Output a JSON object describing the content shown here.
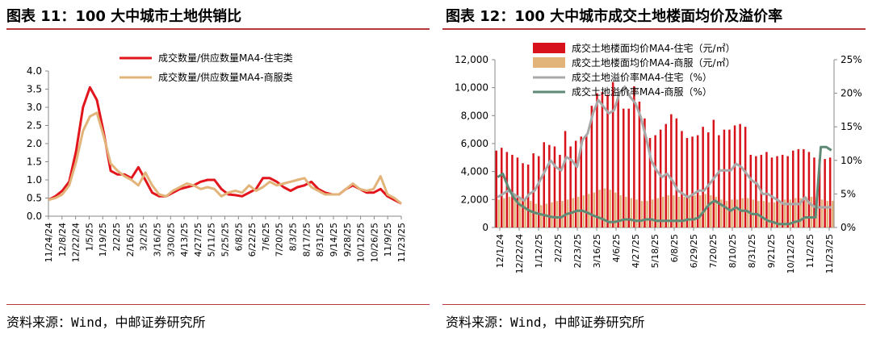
{
  "left": {
    "title": "图表 11：100 大中城市土地供销比",
    "source": "资料来源：Wind，中邮证券研究所"
  },
  "right": {
    "title": "图表 12：100 大中城市成交土地楼面均价及溢价率",
    "source": "资料来源：Wind，中邮证券研究所"
  },
  "chart_data": [
    {
      "type": "line",
      "title": "图表 11：100 大中城市土地供销比",
      "xlabel": "",
      "ylabel": "",
      "ylim": [
        0,
        4.0
      ],
      "yticks": [
        "0.0",
        "0.5",
        "1.0",
        "1.5",
        "2.0",
        "2.5",
        "3.0",
        "3.5",
        "4.0"
      ],
      "x_tick_labels": [
        "11/24/24",
        "12/8/24",
        "12/22/24",
        "1/5/25",
        "1/19/25",
        "2/2/25",
        "2/16/25",
        "3/2/25",
        "3/16/25",
        "3/30/25",
        "4/13/25",
        "4/27/25",
        "5/11/25",
        "5/25/25",
        "6/8/25",
        "6/22/25",
        "7/6/25",
        "7/20/25",
        "8/3/25",
        "8/17/25",
        "8/31/25",
        "9/14/25",
        "9/28/25",
        "10/12/25",
        "10/26/25",
        "11/9/25",
        "11/23/25"
      ],
      "legend_position": "top-left",
      "series": [
        {
          "name": "成交数量/供应数量MA4-住宅类",
          "color": "#e3151c",
          "values": [
            0.45,
            0.55,
            0.7,
            0.95,
            1.8,
            3.0,
            3.55,
            3.2,
            2.3,
            1.25,
            1.15,
            1.15,
            1.05,
            1.35,
            1.0,
            0.65,
            0.55,
            0.55,
            0.65,
            0.75,
            0.8,
            0.85,
            0.95,
            1.0,
            1.0,
            0.75,
            0.6,
            0.58,
            0.55,
            0.65,
            0.75,
            1.05,
            1.05,
            0.95,
            0.8,
            0.7,
            0.8,
            0.85,
            0.95,
            0.75,
            0.65,
            0.6,
            0.6,
            0.75,
            0.85,
            0.75,
            0.65,
            0.65,
            0.75,
            0.55,
            0.45,
            0.35
          ]
        },
        {
          "name": "成交数量/供应数量MA4-商服类",
          "color": "#e2b47a",
          "values": [
            0.45,
            0.5,
            0.6,
            0.85,
            1.5,
            2.35,
            2.75,
            2.85,
            2.2,
            1.45,
            1.25,
            1.1,
            1.0,
            0.85,
            1.2,
            0.85,
            0.6,
            0.55,
            0.7,
            0.8,
            0.9,
            0.85,
            0.75,
            0.8,
            0.75,
            0.55,
            0.65,
            0.7,
            0.65,
            0.85,
            0.7,
            0.8,
            0.95,
            0.85,
            0.9,
            0.95,
            1.0,
            1.05,
            0.8,
            0.7,
            0.6,
            0.6,
            0.6,
            0.75,
            0.9,
            0.75,
            0.7,
            0.75,
            1.1,
            0.6,
            0.5,
            0.35
          ]
        }
      ]
    },
    {
      "type": "bar+line",
      "title": "图表 12：100 大中城市成交土地楼面均价及溢价率",
      "xlabel": "",
      "ylabel": "",
      "ylim": [
        0,
        12000
      ],
      "yticks": [
        "0",
        "2,000",
        "4,000",
        "6,000",
        "8,000",
        "10,000",
        "12,000"
      ],
      "y2lim": [
        0,
        25
      ],
      "y2ticks": [
        "0%",
        "5%",
        "10%",
        "15%",
        "20%",
        "25%"
      ],
      "x_tick_labels": [
        "12/1/24",
        "12/22/24",
        "1/12/25",
        "2/2/25",
        "2/23/25",
        "3/16/25",
        "4/6/25",
        "4/27/25",
        "5/18/25",
        "6/8/25",
        "6/29/25",
        "7/20/25",
        "8/10/25",
        "8/31/25",
        "9/21/25",
        "10/12/25",
        "11/2/25",
        "11/23/25"
      ],
      "legend_position": "top-left",
      "series": [
        {
          "name": "成交土地楼面均价MA4-住宅（元/㎡）",
          "color": "#d7121a",
          "axis": "left",
          "type": "bar",
          "values": [
            5500,
            5700,
            5400,
            5200,
            5000,
            4600,
            4500,
            5300,
            5100,
            6100,
            5900,
            5800,
            5200,
            6900,
            5800,
            6200,
            6500,
            6600,
            8700,
            9600,
            9700,
            9500,
            10400,
            9300,
            8500,
            8500,
            10100,
            9000,
            7800,
            6400,
            6600,
            7000,
            7400,
            8100,
            7800,
            6900,
            6400,
            6500,
            6600,
            7200,
            6800,
            7700,
            6600,
            7000,
            7000,
            7300,
            7400,
            7200,
            5200,
            5100,
            5200,
            5400,
            5000,
            5100,
            5200,
            5100,
            5500,
            5600,
            5600,
            5400,
            5000,
            4900,
            4900,
            5000
          ]
        },
        {
          "name": "成交土地楼面均价MA4-商服（元/㎡）",
          "color": "#e2b47a",
          "axis": "left",
          "type": "bar",
          "values": [
            2000,
            2100,
            2200,
            2300,
            2200,
            2000,
            1900,
            1700,
            1600,
            1700,
            1800,
            1900,
            1900,
            2000,
            2100,
            2200,
            2300,
            2400,
            2500,
            2700,
            2800,
            2700,
            2500,
            2300,
            2200,
            2100,
            2000,
            1900,
            1900,
            2000,
            2100,
            2200,
            2300,
            2300,
            2200,
            2200,
            2200,
            2300,
            2300,
            2400,
            2300,
            2200,
            2000,
            1900,
            2000,
            2000,
            2100,
            2100,
            2000,
            1900,
            1900,
            1800,
            1800,
            1900,
            2000,
            2000,
            2100,
            2100,
            2200,
            2200,
            2100,
            2000,
            1900,
            1900
          ]
        },
        {
          "name": "成交土地溢价率MA4-住宅（%）",
          "color": "#a9a9a9",
          "axis": "right",
          "type": "line",
          "values": [
            4.5,
            5.0,
            5.5,
            5.0,
            4.5,
            4.0,
            5.0,
            5.5,
            7.0,
            8.5,
            10.0,
            9.0,
            8.5,
            10.5,
            10.0,
            9.0,
            13.0,
            14.0,
            17.0,
            19.0,
            18.0,
            17.0,
            17.5,
            20.0,
            21.0,
            19.5,
            18.5,
            16.5,
            13.5,
            10.0,
            8.5,
            7.5,
            8.0,
            7.0,
            5.5,
            5.0,
            4.5,
            5.0,
            5.5,
            5.5,
            6.5,
            7.5,
            8.5,
            8.5,
            8.5,
            9.5,
            9.0,
            8.0,
            7.0,
            6.5,
            5.0,
            5.0,
            4.5,
            4.0,
            3.5,
            3.5,
            3.5,
            3.5,
            4.5,
            3.5,
            3.0,
            3.0,
            3.0,
            3.0
          ]
        },
        {
          "name": "成交土地溢价率MA4-商服（%）",
          "color": "#5e8a76",
          "axis": "right",
          "type": "line",
          "values": [
            7.5,
            8.0,
            6.0,
            4.5,
            3.5,
            3.0,
            2.5,
            2.2,
            2.0,
            1.8,
            1.6,
            1.5,
            1.5,
            2.0,
            2.2,
            2.5,
            2.5,
            2.2,
            1.8,
            1.5,
            1.2,
            0.8,
            0.8,
            1.0,
            1.2,
            1.2,
            1.0,
            1.0,
            1.2,
            1.2,
            1.0,
            1.0,
            1.0,
            1.0,
            1.0,
            1.0,
            1.2,
            1.2,
            1.5,
            2.5,
            3.5,
            4.0,
            3.5,
            3.0,
            2.5,
            3.0,
            2.5,
            2.5,
            2.0,
            2.0,
            1.5,
            1.0,
            0.8,
            0.5,
            0.5,
            0.5,
            0.8,
            1.0,
            1.5,
            1.5,
            1.5,
            12.0,
            12.0,
            11.5
          ]
        }
      ]
    }
  ]
}
